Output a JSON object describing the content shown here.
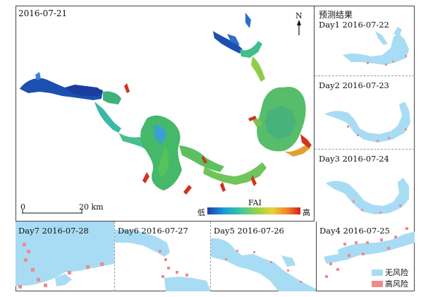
{
  "main": {
    "date": "2016-07-21",
    "north": "N",
    "scale": {
      "zero": "0",
      "end": "20 km"
    },
    "colorbar": {
      "title": "FAI",
      "low": "低",
      "high": "高",
      "colors": [
        "#1c3fa8",
        "#1a9cd8",
        "#3cc8a0",
        "#8fd24a",
        "#e8d23a",
        "#f08a2a",
        "#d2201e"
      ]
    }
  },
  "prediction": {
    "heading": "预测结果",
    "days": [
      {
        "label": "Day1 2016-07-22"
      },
      {
        "label": "Day2 2016-07-23"
      },
      {
        "label": "Day3 2016-07-24"
      },
      {
        "label": "Day4 2016-07-25"
      },
      {
        "label": "Day5 2016-07-26"
      },
      {
        "label": "Day6 2016-07-27"
      },
      {
        "label": "Day7 2016-07-28"
      }
    ]
  },
  "legend": {
    "no_risk": {
      "label": "无风险",
      "color": "#a8dcf4"
    },
    "high_risk": {
      "label": "高风险",
      "color": "#f08a8a"
    }
  }
}
